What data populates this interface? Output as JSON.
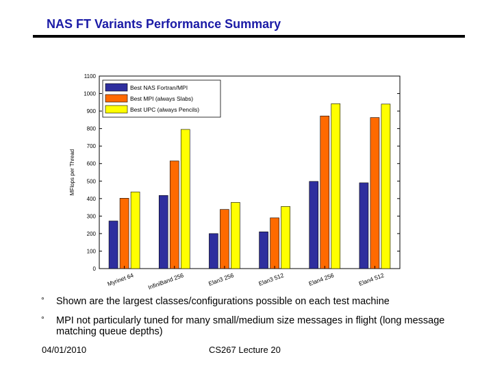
{
  "slide": {
    "title": "NAS FT Variants Performance Summary",
    "bullets": [
      {
        "marker": "°",
        "text": "Shown are the largest classes/configurations possible on each test machine"
      },
      {
        "marker": "°",
        "text": "MPI not particularly tuned for many small/medium size messages in flight (long message matching queue depths)"
      }
    ],
    "footer_date": "04/01/2010",
    "footer_course": "CS267 Lecture 20"
  },
  "chart_data": {
    "type": "bar",
    "title": "",
    "xlabel": "",
    "ylabel": "MFlops per Thread",
    "ylim": [
      0,
      1100
    ],
    "yticks": [
      0,
      100,
      200,
      300,
      400,
      500,
      600,
      700,
      800,
      900,
      1000,
      1100
    ],
    "categories": [
      "Myrinet 64",
      "InfiniBand 256",
      "Elan3 256",
      "Elan3 512",
      "Elan4 256",
      "Elan4 512"
    ],
    "series": [
      {
        "name": "Best NAS Fortran/MPI",
        "color": "#2e2e9e",
        "values": [
          272,
          418,
          200,
          210,
          498,
          490
        ]
      },
      {
        "name": "Best MPI (always Slabs)",
        "color": "#ff6a00",
        "values": [
          402,
          615,
          338,
          290,
          872,
          863
        ]
      },
      {
        "name": "Best UPC (always Pencils)",
        "color": "#ffff00",
        "values": [
          438,
          795,
          378,
          355,
          942,
          940
        ]
      }
    ],
    "legend_position": "top-left",
    "grid": false
  }
}
